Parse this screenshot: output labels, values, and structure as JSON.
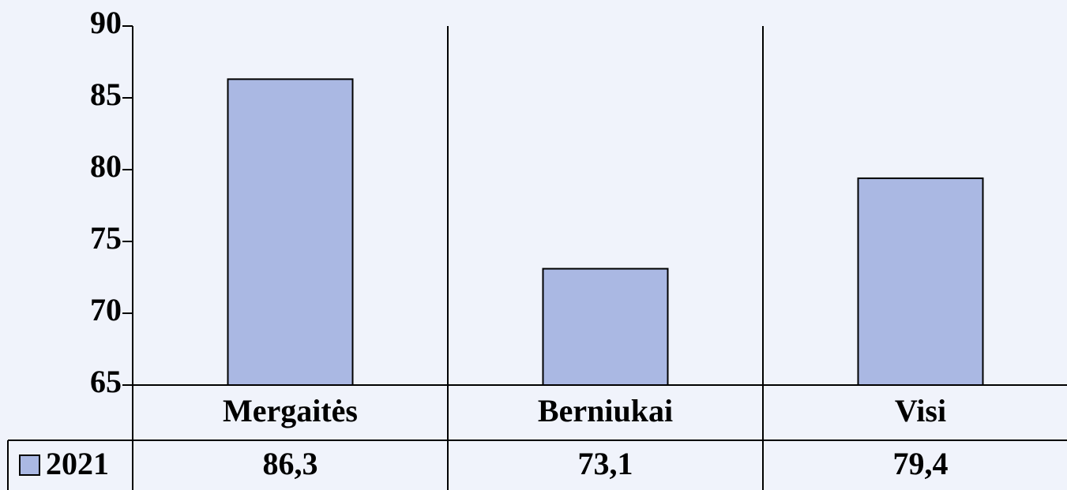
{
  "chart_data": {
    "type": "bar",
    "categories": [
      "Mergaitės",
      "Berniukai",
      "Visi"
    ],
    "series": [
      {
        "name": "2021",
        "color": "#aab8e3",
        "values": [
          86.3,
          73.1,
          79.4
        ],
        "value_labels": [
          "86,3",
          "73,1",
          "79,4"
        ]
      }
    ],
    "ylim": [
      65,
      90
    ],
    "yticks": [
      65,
      70,
      75,
      80,
      85,
      90
    ],
    "grid": false
  }
}
